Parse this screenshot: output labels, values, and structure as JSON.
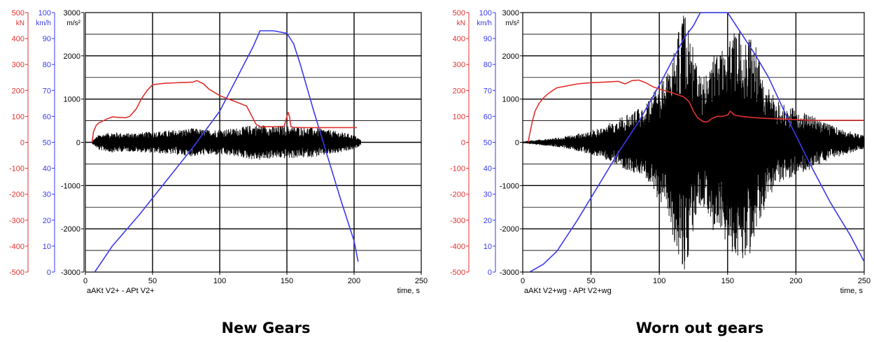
{
  "chart_data": [
    {
      "type": "line",
      "caption": "New Gears",
      "title": "",
      "xlabel": "time, s",
      "series_label": "aAKt V2+ - APt V2+",
      "xlim": [
        0,
        250
      ],
      "xticks": [
        0,
        50,
        100,
        150,
        200,
        250
      ],
      "axes": [
        {
          "unit": "kN",
          "color": "#e0312f",
          "ticks": [
            500,
            400,
            300,
            200,
            100,
            0,
            -100,
            -200,
            -300,
            -400,
            -500
          ],
          "ylim": [
            -500,
            500
          ]
        },
        {
          "unit": "km/h",
          "color": "#3a3af0",
          "ticks": [
            100,
            90,
            80,
            70,
            60,
            50,
            40,
            30,
            20,
            10,
            0
          ],
          "ylim": [
            0,
            100
          ]
        },
        {
          "unit": "m/s²",
          "color": "#000000",
          "ticks": [
            3000,
            2000,
            1000,
            0,
            -1000,
            -2000,
            -3000
          ],
          "ylim": [
            -3000,
            3000
          ]
        }
      ],
      "grid": true,
      "series": [
        {
          "axis": "km/h",
          "color": "#3a3af0",
          "x": [
            7,
            20,
            40,
            60,
            80,
            100,
            115,
            125,
            130,
            140,
            150,
            155,
            160,
            170,
            180,
            190,
            200,
            203
          ],
          "y": [
            0,
            10,
            22,
            35,
            48,
            62,
            77,
            87,
            93,
            93,
            92,
            88,
            80,
            62,
            45,
            28,
            12,
            4
          ]
        },
        {
          "axis": "kN",
          "color": "#e0312f",
          "x": [
            5,
            6,
            8,
            10,
            13,
            16,
            20,
            25,
            30,
            33,
            38,
            42,
            46,
            50,
            60,
            70,
            80,
            83,
            88,
            92,
            100,
            110,
            120,
            123,
            127,
            130,
            140,
            148,
            150,
            151,
            152,
            153,
            155,
            160,
            180,
            200,
            202
          ],
          "y": [
            0,
            40,
            65,
            75,
            82,
            90,
            98,
            96,
            95,
            100,
            130,
            170,
            200,
            222,
            228,
            230,
            232,
            238,
            225,
            205,
            180,
            160,
            140,
            110,
            70,
            60,
            60,
            62,
            100,
            115,
            98,
            60,
            58,
            57,
            57,
            57,
            57
          ]
        },
        {
          "axis": "m/s²",
          "color": "#000000",
          "kind": "vibration",
          "env_x": [
            5,
            10,
            20,
            30,
            40,
            50,
            60,
            70,
            80,
            90,
            100,
            110,
            120,
            130,
            140,
            150,
            160,
            170,
            180,
            190,
            200,
            205
          ],
          "env_amp": [
            30,
            180,
            240,
            210,
            230,
            250,
            270,
            300,
            330,
            290,
            300,
            320,
            380,
            420,
            370,
            380,
            360,
            340,
            300,
            240,
            170,
            60
          ]
        }
      ]
    },
    {
      "type": "line",
      "caption": "Worn out gears",
      "title": "",
      "xlabel": "time, s",
      "series_label": "aAKt V2+wg - APt V2+wg",
      "xlim": [
        0,
        250
      ],
      "xticks": [
        0,
        50,
        100,
        150,
        200,
        250
      ],
      "axes": [
        {
          "unit": "kN",
          "color": "#e0312f",
          "ticks": [
            500,
            400,
            300,
            200,
            100,
            0,
            -100,
            -200,
            -300,
            -400,
            -500
          ],
          "ylim": [
            -500,
            500
          ]
        },
        {
          "unit": "km/h",
          "color": "#3a3af0",
          "ticks": [
            100,
            90,
            80,
            70,
            60,
            50,
            40,
            30,
            20,
            10,
            0
          ],
          "ylim": [
            0,
            100
          ]
        },
        {
          "unit": "m/s²",
          "color": "#000000",
          "ticks": [
            3000,
            2000,
            1000,
            0,
            -1000,
            -2000,
            -3000
          ],
          "ylim": [
            -3000,
            3000
          ]
        }
      ],
      "grid": true,
      "series": [
        {
          "axis": "km/h",
          "color": "#3a3af0",
          "x": [
            5,
            15,
            25,
            40,
            55,
            70,
            85,
            100,
            110,
            118,
            125,
            130,
            140,
            150,
            160,
            170,
            180,
            195,
            210,
            225,
            240,
            250
          ],
          "y": [
            0,
            3,
            8,
            20,
            33,
            46,
            58,
            72,
            82,
            90,
            95,
            100,
            100,
            100,
            92,
            84,
            75,
            58,
            42,
            27,
            14,
            4
          ]
        },
        {
          "axis": "kN",
          "color": "#e0312f",
          "x": [
            4,
            5,
            7,
            9,
            12,
            15,
            18,
            22,
            25,
            30,
            40,
            50,
            60,
            70,
            75,
            80,
            85,
            90,
            95,
            100,
            110,
            118,
            122,
            125,
            128,
            132,
            135,
            138,
            142,
            146,
            150,
            152,
            155,
            160,
            170,
            180,
            190,
            200,
            210,
            230,
            250
          ],
          "y": [
            0,
            30,
            80,
            120,
            150,
            170,
            185,
            200,
            210,
            215,
            225,
            230,
            232,
            235,
            225,
            238,
            240,
            230,
            215,
            205,
            190,
            175,
            155,
            120,
            95,
            80,
            78,
            90,
            100,
            100,
            105,
            120,
            105,
            100,
            95,
            92,
            90,
            88,
            85,
            85,
            85
          ]
        },
        {
          "axis": "m/s²",
          "color": "#000000",
          "kind": "vibration",
          "env_x": [
            0,
            10,
            20,
            30,
            40,
            50,
            60,
            70,
            80,
            90,
            100,
            105,
            110,
            115,
            118,
            122,
            126,
            130,
            135,
            140,
            145,
            150,
            155,
            160,
            165,
            170,
            175,
            180,
            185,
            190,
            195,
            200,
            205,
            210,
            220,
            230,
            240,
            250
          ],
          "env_amp": [
            20,
            60,
            90,
            130,
            200,
            280,
            380,
            550,
            700,
            900,
            1350,
            1600,
            2200,
            2700,
            3000,
            2600,
            2000,
            1500,
            1600,
            2100,
            2300,
            2400,
            2600,
            2800,
            2700,
            2300,
            1700,
            1300,
            1000,
            900,
            850,
            750,
            700,
            650,
            480,
            350,
            250,
            150
          ]
        }
      ]
    }
  ],
  "captions": {
    "left": "New Gears",
    "right": "Worn out gears"
  }
}
